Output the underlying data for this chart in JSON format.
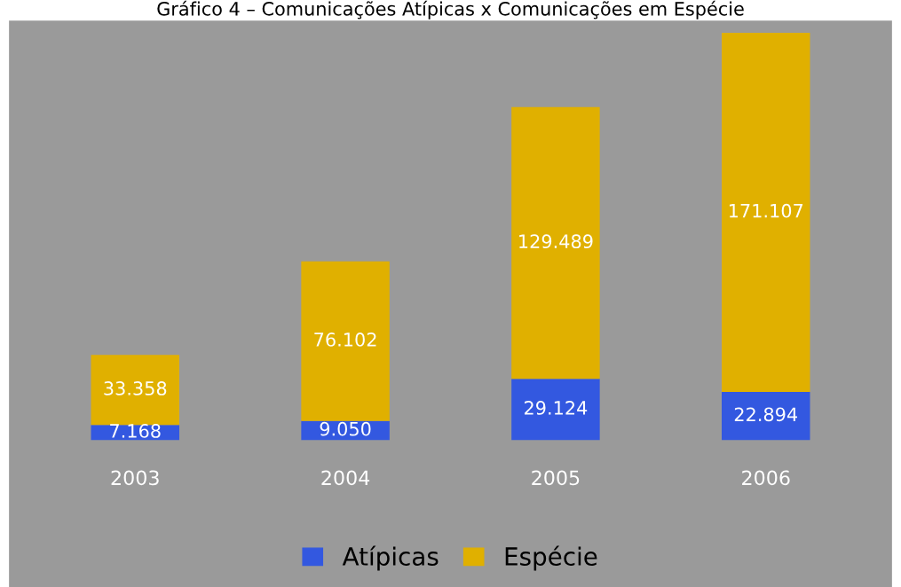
{
  "chart_data": {
    "type": "bar",
    "title": "Gráfico 4 – Comunicações Atípicas x Comunicações em Espécie",
    "categories": [
      "2003",
      "2004",
      "2005",
      "2006"
    ],
    "stacked": true,
    "legend": "bottom",
    "grid": false,
    "tick_labels": "x",
    "series": [
      {
        "name": "Atípicas",
        "color": "#3358e0",
        "values": [
          7168,
          9050,
          29124,
          22894
        ],
        "value_labels": [
          "7.168",
          "9.050",
          "29.124",
          "22.894"
        ]
      },
      {
        "name": "Espécie",
        "color": "#e0b000",
        "values": [
          33358,
          76102,
          129489,
          171107
        ],
        "value_labels": [
          "33.358",
          "76.102",
          "129.489",
          "171.107"
        ]
      }
    ]
  }
}
